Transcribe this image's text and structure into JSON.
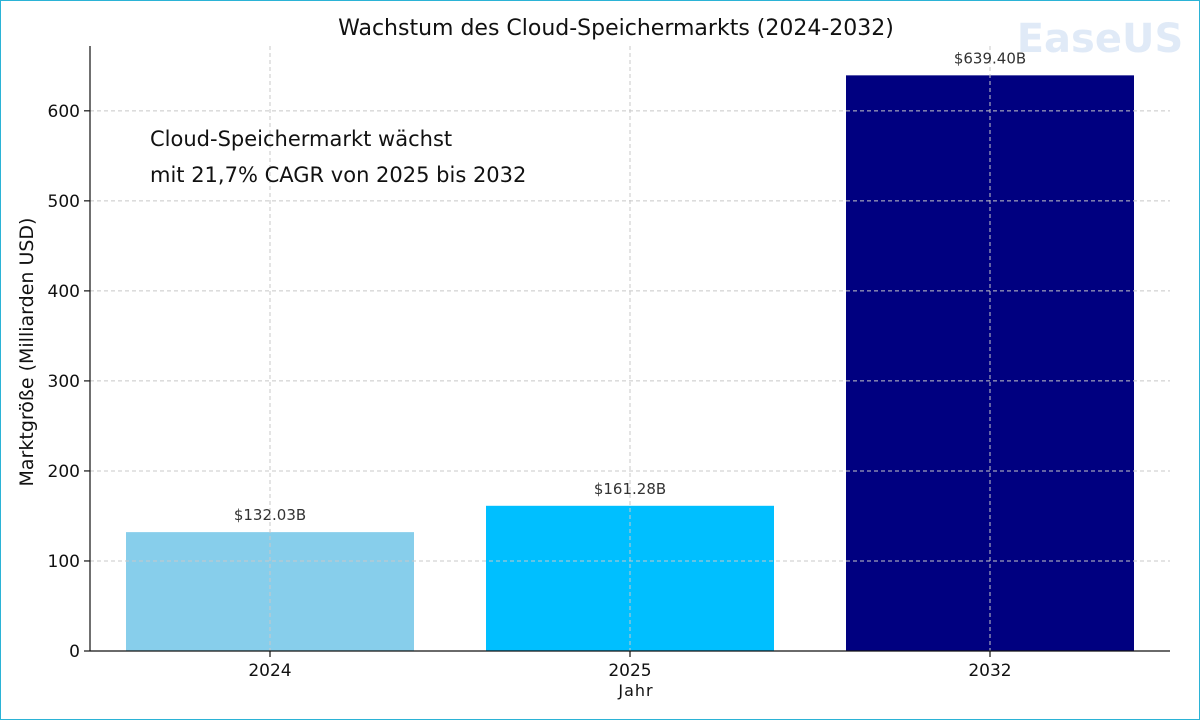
{
  "watermark": {
    "text": "EaseUS"
  },
  "chart_data": {
    "type": "bar",
    "title": "Wachstum des Cloud-Speichermarkts (2024-2032)",
    "xlabel": "Jahr",
    "ylabel": "Marktgröße (Milliarden USD)",
    "categories": [
      "2024",
      "2025",
      "2032"
    ],
    "values": [
      132.03,
      161.28,
      639.4
    ],
    "data_labels": [
      "$132.03B",
      "$161.28B",
      "$639.40B"
    ],
    "colors": [
      "#87ceeb",
      "#00bfff",
      "#000080"
    ],
    "ylim": [
      0,
      672
    ],
    "yticks": [
      0,
      100,
      200,
      300,
      400,
      500,
      600
    ],
    "grid": true,
    "annotation": [
      "Cloud-Speichermarkt wächst",
      "mit 21,7% CAGR von 2025 bis 2032"
    ]
  }
}
